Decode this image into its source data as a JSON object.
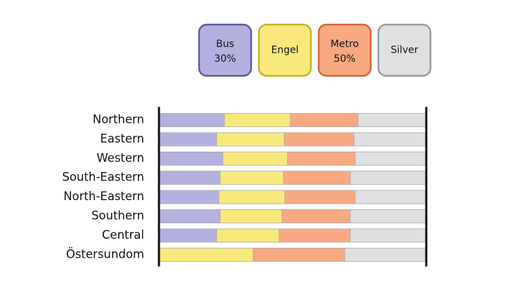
{
  "chart_data": {
    "type": "stacked_bar_horizontal",
    "categories": [
      "Northern",
      "Eastern",
      "Western",
      "South-Eastern",
      "North-Eastern",
      "Southern",
      "Central",
      "Östersundom"
    ],
    "xlim": [
      0,
      100
    ],
    "series": [
      {
        "name": "Bus",
        "color": "#b4b1e0",
        "border": "#5d5a9c",
        "legend_value": 30,
        "legend_value_label": "30%",
        "values": [
          24.5,
          21.6,
          23.9,
          22.9,
          22.4,
          22.9,
          21.6,
          0
        ]
      },
      {
        "name": "Engel",
        "color": "#f9e97c",
        "border": "#c7b322",
        "values": [
          24.7,
          25.3,
          24.2,
          23.7,
          24.7,
          23.2,
          23.4,
          35.3
        ]
      },
      {
        "name": "Metro",
        "color": "#f7a982",
        "border": "#d8633b",
        "legend_value": 50,
        "legend_value_label": "50%",
        "values": [
          25.3,
          26.1,
          25.3,
          25.0,
          26.3,
          25.5,
          26.6,
          34.2
        ]
      },
      {
        "name": "Silver",
        "color": "#dfe0e2",
        "border": "#9b9b9b",
        "values": [
          25.5,
          27.0,
          26.6,
          28.4,
          26.6,
          28.4,
          28.4,
          30.5
        ]
      }
    ]
  }
}
